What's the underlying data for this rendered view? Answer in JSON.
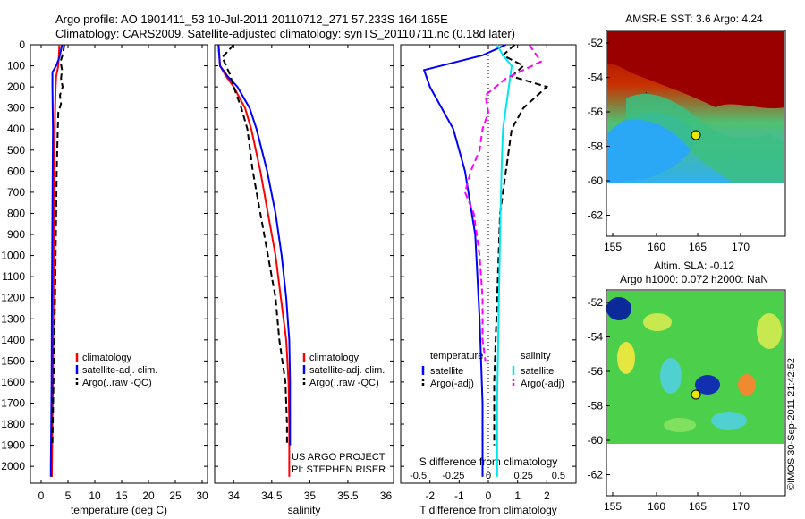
{
  "header": {
    "title_line1": "Argo profile: AO 1901411_53 10-Jul-2011 20110712_271 57.233S 164.165E",
    "title_line2": "Climatology: CARS2009. Satellite-adjusted climatology: synTS_20110711.nc (0.18d later)"
  },
  "colors": {
    "climatology": "#ff0000",
    "satellite": "#0000ff",
    "argo": "#000000",
    "salinity_satellite": "#00e5ee",
    "salinity_argo": "#ff00ff"
  },
  "depth_axis": {
    "ticks": [
      "0",
      "100",
      "200",
      "300",
      "400",
      "500",
      "600",
      "700",
      "800",
      "900",
      "1000",
      "1100",
      "1200",
      "1300",
      "1400",
      "1500",
      "1600",
      "1700",
      "1800",
      "1900",
      "2000"
    ]
  },
  "legend_profile": {
    "items": [
      {
        "label": "climatology",
        "color": "#ff0000",
        "dash": false
      },
      {
        "label": "satellite-adj. clim.",
        "color": "#0000ff",
        "dash": false
      },
      {
        "label": "Argo(..raw -QC)",
        "color": "#000000",
        "dash": true
      }
    ]
  },
  "legend_diff": {
    "temperature_title": "temperature",
    "salinity_title": "salinity",
    "temp_items": [
      {
        "label": "satellite",
        "color": "#0000ff",
        "dash": false
      },
      {
        "label": "Argo(-adj)",
        "color": "#000000",
        "dash": true
      }
    ],
    "sal_items": [
      {
        "label": "satellite",
        "color": "#00e5ee",
        "dash": false
      },
      {
        "label": "Argo(-adj)",
        "color": "#ff00ff",
        "dash": true
      }
    ]
  },
  "project_note": {
    "line1": "US ARGO PROJECT",
    "line2": "PI: STEPHEN RISER"
  },
  "maps": {
    "sst_title": "AMSR-E SST: 3.6 Argo: 4.24",
    "sla_title_line1": "Altim. SLA: -0.12",
    "sla_title_line2": "Argo h1000: 0.072 h2000: NaN",
    "lat_ticks": [
      "-52",
      "-54",
      "-56",
      "-58",
      "-60",
      "-62"
    ],
    "lon_ticks": [
      "155",
      "160",
      "165",
      "170"
    ]
  },
  "watermark": "©IMOS 30-Sep-2011 21:42:52",
  "chart_data": [
    {
      "type": "line",
      "xlabel": "temperature (deg C)",
      "ylabel": "",
      "xlim": [
        -2,
        31
      ],
      "ylim": [
        2080,
        0
      ],
      "x_ticks": [
        "0",
        "5",
        "10",
        "15",
        "20",
        "25",
        "30"
      ],
      "series": [
        {
          "name": "climatology",
          "depth": [
            0,
            100,
            150,
            200,
            300,
            500,
            800,
            1200,
            1600,
            2000,
            2050
          ],
          "values": [
            3.4,
            3.2,
            2.8,
            2.7,
            2.6,
            2.5,
            2.4,
            2.3,
            2.2,
            2.0,
            2.0
          ]
        },
        {
          "name": "satellite-adj. clim.",
          "depth": [
            0,
            60,
            100,
            130,
            200,
            400,
            800,
            1200,
            1600,
            2000,
            2050
          ],
          "values": [
            3.9,
            3.4,
            2.8,
            2.1,
            2.1,
            2.2,
            2.1,
            2.0,
            1.95,
            1.8,
            1.8
          ]
        },
        {
          "name": "Argo(..raw -QC)",
          "depth": [
            0,
            40,
            80,
            120,
            160,
            200,
            240,
            280,
            320,
            400,
            600,
            800,
            1200,
            1600,
            1900
          ],
          "values": [
            4.3,
            4.1,
            3.6,
            3.9,
            3.7,
            4.0,
            3.5,
            3.7,
            3.2,
            3.1,
            2.9,
            2.8,
            2.6,
            2.3,
            2.1
          ]
        }
      ]
    },
    {
      "type": "line",
      "xlabel": "salinity",
      "ylabel": "",
      "xlim": [
        33.75,
        36.1
      ],
      "ylim": [
        2080,
        0
      ],
      "x_ticks": [
        "34",
        "34.5",
        "35",
        "35.5",
        "36"
      ],
      "series": [
        {
          "name": "climatology",
          "depth": [
            0,
            100,
            150,
            200,
            300,
            400,
            600,
            800,
            1000,
            1200,
            1400,
            1600,
            1800,
            2050
          ],
          "values": [
            33.8,
            33.82,
            33.9,
            34.0,
            34.15,
            34.23,
            34.35,
            34.45,
            34.55,
            34.62,
            34.69,
            34.72,
            34.73,
            34.73
          ]
        },
        {
          "name": "satellite-adj. clim.",
          "depth": [
            0,
            100,
            150,
            200,
            300,
            400,
            600,
            800,
            1000,
            1200,
            1400,
            1600,
            1800,
            1900
          ],
          "values": [
            33.8,
            33.82,
            33.92,
            34.05,
            34.21,
            34.3,
            34.44,
            34.55,
            34.63,
            34.69,
            34.73,
            34.74,
            34.74,
            34.74
          ]
        },
        {
          "name": "Argo(..raw -QC)",
          "depth": [
            0,
            60,
            100,
            140,
            200,
            300,
            400,
            600,
            800,
            1000,
            1200,
            1400,
            1600,
            1800,
            1900
          ],
          "values": [
            34.0,
            33.85,
            33.9,
            33.95,
            34.0,
            34.1,
            34.18,
            34.25,
            34.35,
            34.45,
            34.55,
            34.6,
            34.68,
            34.7,
            34.7
          ]
        }
      ]
    },
    {
      "type": "line",
      "xlabel": "T difference from climatology",
      "ylabel": "",
      "xlim": [
        -3,
        3
      ],
      "ylim": [
        2080,
        0
      ],
      "x_ticks": [
        "-2",
        "-1",
        "0",
        "1",
        "2"
      ],
      "top_axis_label": "S difference from climatology",
      "top_ticks": [
        "-0.5",
        "-0.25",
        "0",
        "0.25",
        "0.5"
      ],
      "series": [
        {
          "name": "temperature satellite",
          "depth": [
            0,
            50,
            120,
            200,
            400,
            600,
            900,
            1300,
            1700,
            2050
          ],
          "values": [
            0.6,
            -0.2,
            -2.2,
            -2.0,
            -1.2,
            -0.8,
            -0.45,
            -0.3,
            -0.2,
            -0.2
          ]
        },
        {
          "name": "temperature Argo(-adj)",
          "depth": [
            0,
            50,
            100,
            150,
            200,
            250,
            300,
            400,
            600,
            800,
            1200,
            1600,
            1900
          ],
          "values": [
            0.9,
            0.5,
            1.2,
            0.8,
            2.0,
            1.6,
            1.2,
            0.8,
            0.6,
            0.4,
            0.3,
            0.2,
            0.2
          ]
        },
        {
          "name": "salinity satellite",
          "depth": [
            0,
            50,
            100,
            200,
            400,
            600,
            900,
            1300,
            1700,
            2050
          ],
          "values": [
            0.3,
            0.5,
            0.8,
            0.7,
            0.5,
            0.45,
            0.4,
            0.35,
            0.3,
            0.3
          ]
        },
        {
          "name": "salinity Argo(-adj)",
          "depth": [
            0,
            80,
            160,
            240,
            320,
            400,
            500,
            600,
            700,
            800,
            1000,
            1200,
            1400,
            1500
          ],
          "values": [
            1.4,
            1.8,
            0.6,
            -0.1,
            0.0,
            -0.2,
            -0.3,
            -0.6,
            -0.8,
            -0.5,
            -0.3,
            -0.2,
            -0.2,
            -0.1
          ]
        }
      ]
    }
  ]
}
